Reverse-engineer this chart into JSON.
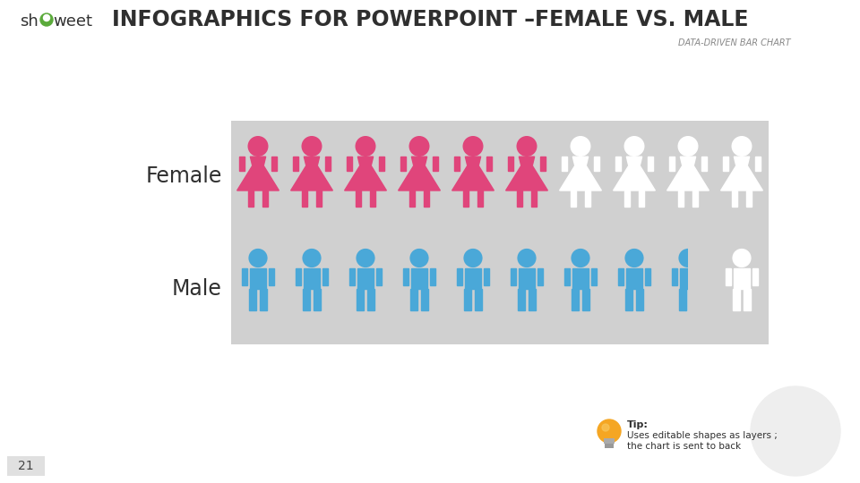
{
  "title": "INFOGRAPHICS FOR POWERPOINT –FEMALE VS. MALE",
  "subtitle": "DATA-DRIVEN BAR CHART",
  "female_label": "Female",
  "male_label": "Male",
  "female_filled": 6,
  "female_total": 10,
  "male_filled": 8.5,
  "male_total": 10,
  "female_color": "#E0457B",
  "male_color": "#4AA8D8",
  "ghost_color": "#FFFFFF",
  "bg_box_color": "#D0D0D0",
  "bg_color": "#FFFFFF",
  "tip_text_title": "Tip:",
  "tip_text_body": "Uses editable shapes as layers ;\nthe chart is sent to back",
  "page_number": "21",
  "title_color": "#2F2F2F",
  "label_color": "#2F2F2F",
  "tip_color": "#2F2F2F",
  "subtitle_color": "#888888",
  "showeet_color": "#333333",
  "showeet_green": "#5AAA3A"
}
